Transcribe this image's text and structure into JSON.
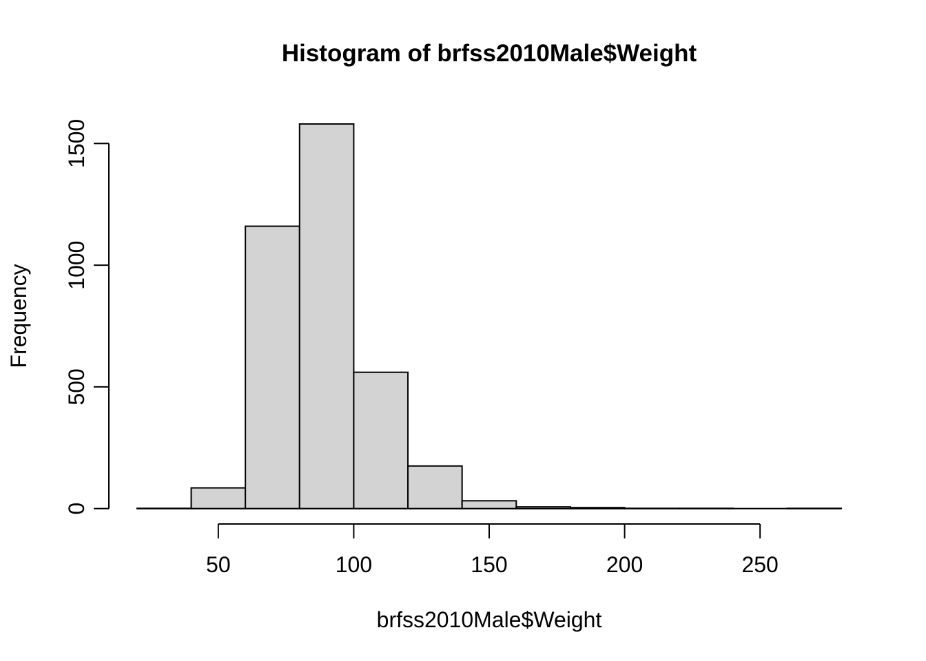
{
  "chart_data": {
    "type": "bar",
    "subtype": "histogram",
    "title": "Histogram of brfss2010Male$Weight",
    "xlabel": "brfss2010Male$Weight",
    "ylabel": "Frequency",
    "bin_breaks": [
      20,
      40,
      60,
      80,
      100,
      120,
      140,
      160,
      180,
      200,
      220,
      240,
      260,
      280
    ],
    "counts": [
      1,
      85,
      1160,
      1580,
      560,
      175,
      32,
      7,
      4,
      1,
      1,
      0,
      1
    ],
    "x_ticks": [
      50,
      100,
      150,
      200,
      250
    ],
    "y_ticks": [
      0,
      500,
      1000,
      1500
    ],
    "xlim": [
      9.6,
      290.4
    ],
    "ylim": [
      -63.3,
      1645.3
    ],
    "grid": "off",
    "legend": "none",
    "bar_fill": "#d3d3d3",
    "bar_border": "#000000",
    "axis_color": "#000000",
    "background": "#ffffff"
  }
}
